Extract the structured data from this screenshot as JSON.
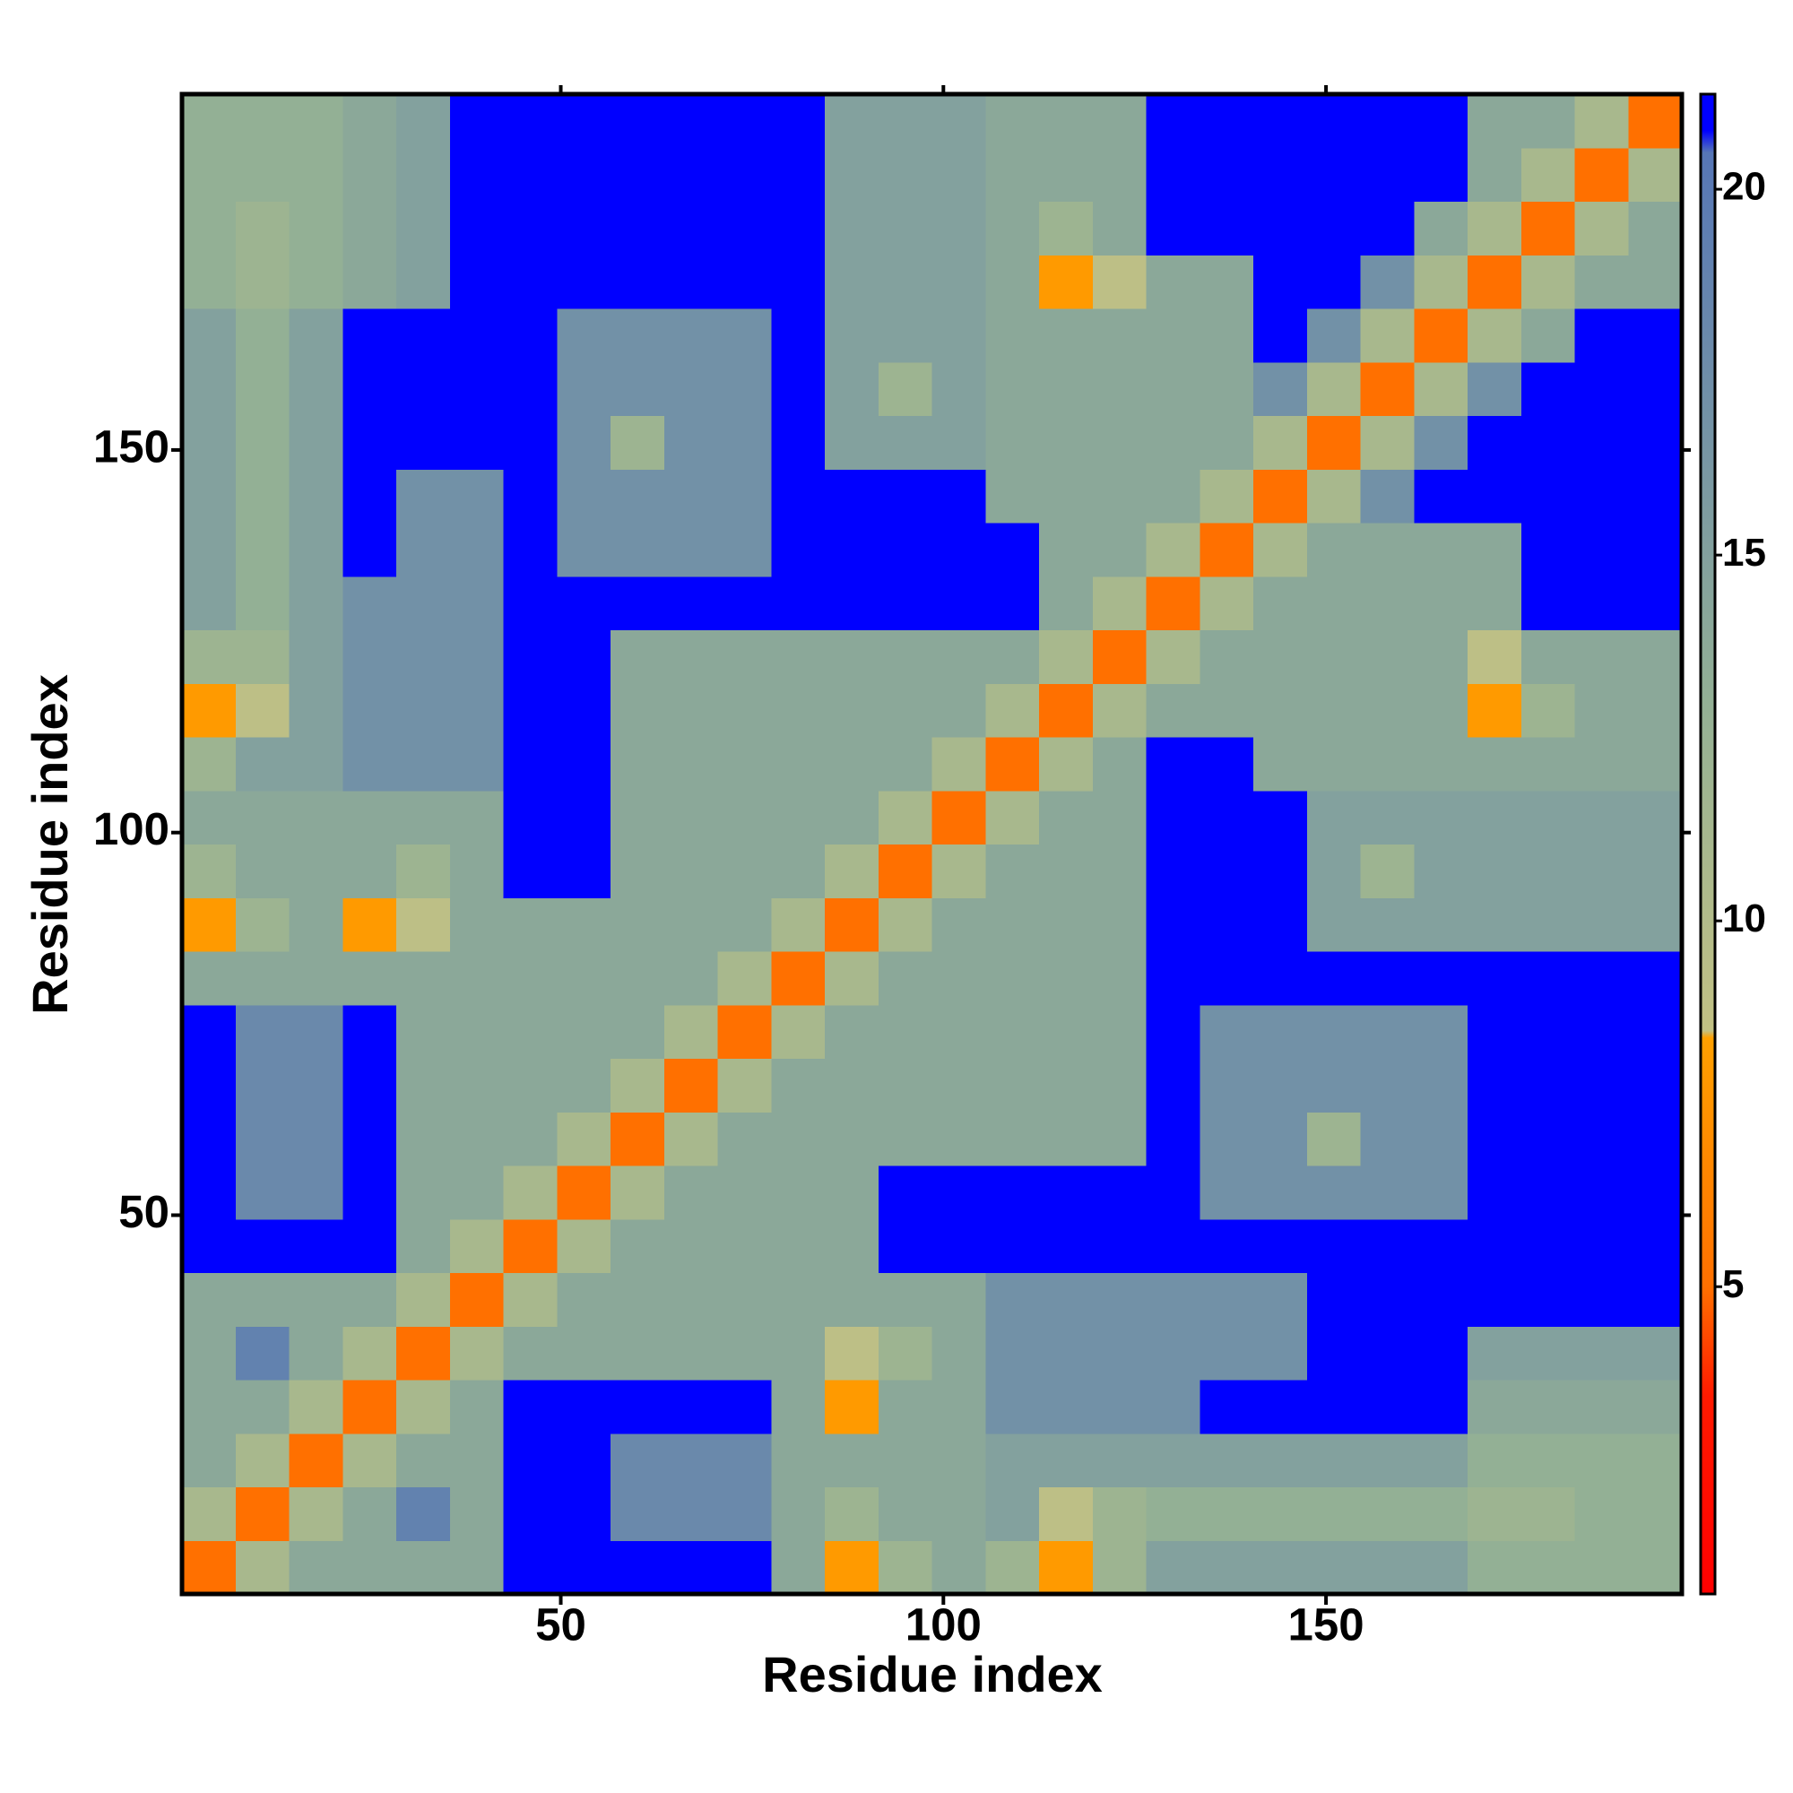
{
  "chart_data": {
    "type": "heatmap",
    "xlabel": "Residue index",
    "ylabel": "Residue index",
    "xlim": [
      0.5,
      196.5
    ],
    "ylim": [
      0.5,
      196.5
    ],
    "xticks": [
      50,
      100,
      150
    ],
    "yticks": [
      50,
      100,
      150
    ],
    "clim": [
      0.8,
      21.3
    ],
    "cticks": [
      5,
      10,
      15,
      20
    ],
    "colorscale": [
      {
        "value": 0.8,
        "color": "#ff0000"
      },
      {
        "value": 3.5,
        "color": "#ff1a00"
      },
      {
        "value": 5,
        "color": "#ff7000"
      },
      {
        "value": 8.4,
        "color": "#ffa000"
      },
      {
        "value": 8.5,
        "color": "#c2c184"
      },
      {
        "value": 13,
        "color": "#93b095"
      },
      {
        "value": 20.5,
        "color": "#5676b6"
      },
      {
        "value": 20.8,
        "color": "#0000ff"
      },
      {
        "value": 21.3,
        "color": "#0000ff"
      }
    ],
    "xbins": [
      0.5,
      7.5,
      14.5,
      21.5,
      28.5,
      35.5,
      42.5,
      49.5,
      56.5,
      63.5,
      70.5,
      77.5,
      84.5,
      91.5,
      98.5,
      105.5,
      112.5,
      119.5,
      126.5,
      133.5,
      140.5,
      147.5,
      154.5,
      161.5,
      168.5,
      175.5,
      182.5,
      189.5,
      196.5
    ],
    "ybins": [
      0.5,
      7.5,
      14.5,
      21.5,
      28.5,
      35.5,
      42.5,
      49.5,
      56.5,
      63.5,
      70.5,
      77.5,
      84.5,
      91.5,
      98.5,
      105.5,
      112.5,
      119.5,
      126.5,
      133.5,
      140.5,
      147.5,
      154.5,
      161.5,
      168.5,
      175.5,
      182.5,
      189.5,
      196.5
    ],
    "values": [
      [
        5,
        11,
        14,
        14,
        14,
        14,
        21,
        21,
        21,
        21,
        21,
        14,
        8,
        12,
        14,
        12,
        8,
        12,
        15,
        15,
        15,
        15,
        15,
        15,
        13,
        13,
        13,
        13
      ],
      [
        11,
        5,
        11,
        14,
        19,
        14,
        21,
        21,
        18,
        18,
        18,
        14,
        12,
        14,
        14,
        15,
        9,
        12,
        13,
        13,
        13,
        13,
        13,
        13,
        12,
        12,
        13,
        13
      ],
      [
        14,
        11,
        5,
        11,
        14,
        14,
        21,
        21,
        18,
        18,
        18,
        14,
        14,
        14,
        14,
        15,
        15,
        15,
        15,
        15,
        15,
        15,
        15,
        15,
        13,
        13,
        13,
        13
      ],
      [
        14,
        14,
        11,
        5,
        11,
        14,
        21,
        21,
        21,
        21,
        21,
        14,
        8,
        14,
        14,
        17,
        17,
        17,
        17,
        21,
        21,
        21,
        21,
        21,
        14,
        14,
        14,
        14
      ],
      [
        14,
        19,
        14,
        11,
        5,
        11,
        14,
        14,
        14,
        14,
        14,
        14,
        9,
        12,
        14,
        17,
        17,
        17,
        17,
        17,
        17,
        21,
        21,
        21,
        15,
        15,
        15,
        15
      ],
      [
        14,
        14,
        14,
        14,
        11,
        5,
        11,
        14,
        14,
        14,
        14,
        14,
        14,
        14,
        14,
        17,
        17,
        17,
        17,
        17,
        17,
        21,
        21,
        21,
        21,
        21,
        21,
        21
      ],
      [
        21,
        21,
        21,
        21,
        14,
        11,
        5,
        11,
        14,
        14,
        14,
        14,
        14,
        21,
        21,
        21,
        21,
        21,
        21,
        21,
        21,
        21,
        21,
        21,
        21,
        21,
        21,
        21
      ],
      [
        21,
        18,
        18,
        21,
        14,
        14,
        11,
        5,
        11,
        14,
        14,
        14,
        14,
        21,
        21,
        21,
        21,
        21,
        21,
        17,
        17,
        17,
        17,
        17,
        21,
        21,
        21,
        21
      ],
      [
        21,
        18,
        18,
        21,
        14,
        14,
        14,
        11,
        5,
        11,
        14,
        14,
        14,
        14,
        14,
        14,
        14,
        14,
        21,
        17,
        17,
        12,
        17,
        17,
        21,
        21,
        21,
        21
      ],
      [
        21,
        18,
        18,
        21,
        14,
        14,
        14,
        14,
        11,
        5,
        11,
        14,
        14,
        14,
        14,
        14,
        14,
        14,
        21,
        17,
        17,
        17,
        17,
        17,
        21,
        21,
        21,
        21
      ],
      [
        21,
        18,
        18,
        21,
        14,
        14,
        14,
        14,
        14,
        11,
        5,
        11,
        14,
        14,
        14,
        14,
        14,
        14,
        21,
        17,
        17,
        17,
        17,
        17,
        21,
        21,
        21,
        21
      ],
      [
        14,
        14,
        14,
        14,
        14,
        14,
        14,
        14,
        14,
        14,
        11,
        5,
        11,
        14,
        14,
        14,
        14,
        14,
        21,
        21,
        21,
        21,
        21,
        21,
        21,
        21,
        21,
        21
      ],
      [
        8,
        12,
        14,
        8,
        9,
        14,
        14,
        14,
        14,
        14,
        14,
        11,
        5,
        11,
        14,
        14,
        14,
        14,
        21,
        21,
        21,
        15,
        15,
        15,
        15,
        15,
        15,
        15
      ],
      [
        12,
        14,
        14,
        14,
        12,
        14,
        21,
        21,
        14,
        14,
        14,
        14,
        11,
        5,
        11,
        14,
        14,
        14,
        21,
        21,
        21,
        15,
        12,
        15,
        15,
        15,
        15,
        15
      ],
      [
        14,
        14,
        14,
        14,
        14,
        14,
        21,
        21,
        14,
        14,
        14,
        14,
        14,
        11,
        5,
        11,
        14,
        14,
        21,
        21,
        21,
        15,
        15,
        15,
        15,
        15,
        15,
        15
      ],
      [
        12,
        15,
        15,
        17,
        17,
        17,
        21,
        21,
        14,
        14,
        14,
        14,
        14,
        14,
        11,
        5,
        11,
        14,
        21,
        21,
        14,
        14,
        14,
        14,
        14,
        14,
        14,
        14
      ],
      [
        8,
        9,
        15,
        17,
        17,
        17,
        21,
        21,
        14,
        14,
        14,
        14,
        14,
        14,
        14,
        11,
        5,
        11,
        14,
        14,
        14,
        14,
        14,
        14,
        8,
        12,
        14,
        14
      ],
      [
        12,
        12,
        15,
        17,
        17,
        17,
        21,
        21,
        14,
        14,
        14,
        14,
        14,
        14,
        14,
        14,
        11,
        5,
        11,
        14,
        14,
        14,
        14,
        14,
        9,
        14,
        14,
        14
      ],
      [
        15,
        13,
        15,
        17,
        17,
        17,
        21,
        21,
        21,
        21,
        21,
        21,
        21,
        21,
        21,
        21,
        14,
        11,
        5,
        11,
        14,
        14,
        14,
        14,
        14,
        21,
        21,
        21
      ],
      [
        15,
        13,
        15,
        21,
        17,
        17,
        21,
        17,
        17,
        17,
        17,
        21,
        21,
        21,
        21,
        21,
        14,
        14,
        11,
        5,
        11,
        14,
        14,
        14,
        14,
        21,
        21,
        21
      ],
      [
        15,
        13,
        15,
        21,
        17,
        17,
        21,
        17,
        17,
        17,
        17,
        21,
        21,
        21,
        21,
        14,
        14,
        14,
        14,
        11,
        5,
        11,
        17,
        21,
        21,
        21,
        21,
        21
      ],
      [
        15,
        13,
        15,
        21,
        21,
        21,
        21,
        17,
        12,
        17,
        17,
        21,
        15,
        15,
        15,
        14,
        14,
        14,
        14,
        14,
        11,
        5,
        11,
        17,
        21,
        21,
        21,
        21
      ],
      [
        15,
        13,
        15,
        21,
        21,
        21,
        21,
        17,
        17,
        17,
        17,
        21,
        15,
        12,
        15,
        14,
        14,
        14,
        14,
        14,
        17,
        11,
        5,
        11,
        17,
        21,
        21,
        21
      ],
      [
        15,
        13,
        15,
        21,
        21,
        21,
        21,
        17,
        17,
        17,
        17,
        21,
        15,
        15,
        15,
        14,
        14,
        14,
        14,
        14,
        21,
        17,
        11,
        5,
        11,
        14,
        21,
        21
      ],
      [
        13,
        12,
        13,
        14,
        15,
        21,
        21,
        21,
        21,
        21,
        21,
        21,
        15,
        15,
        15,
        14,
        8,
        9,
        14,
        14,
        21,
        21,
        17,
        11,
        5,
        11,
        14,
        14
      ],
      [
        13,
        12,
        13,
        14,
        15,
        21,
        21,
        21,
        21,
        21,
        21,
        21,
        15,
        15,
        15,
        14,
        12,
        14,
        21,
        21,
        21,
        21,
        21,
        14,
        11,
        5,
        11,
        14
      ],
      [
        13,
        13,
        13,
        14,
        15,
        21,
        21,
        21,
        21,
        21,
        21,
        21,
        15,
        15,
        15,
        14,
        14,
        14,
        21,
        21,
        21,
        21,
        21,
        21,
        14,
        11,
        5,
        11
      ],
      [
        13,
        13,
        13,
        14,
        15,
        21,
        21,
        21,
        21,
        21,
        21,
        21,
        15,
        15,
        15,
        14,
        14,
        14,
        21,
        21,
        21,
        21,
        21,
        21,
        14,
        14,
        11,
        5
      ]
    ]
  }
}
